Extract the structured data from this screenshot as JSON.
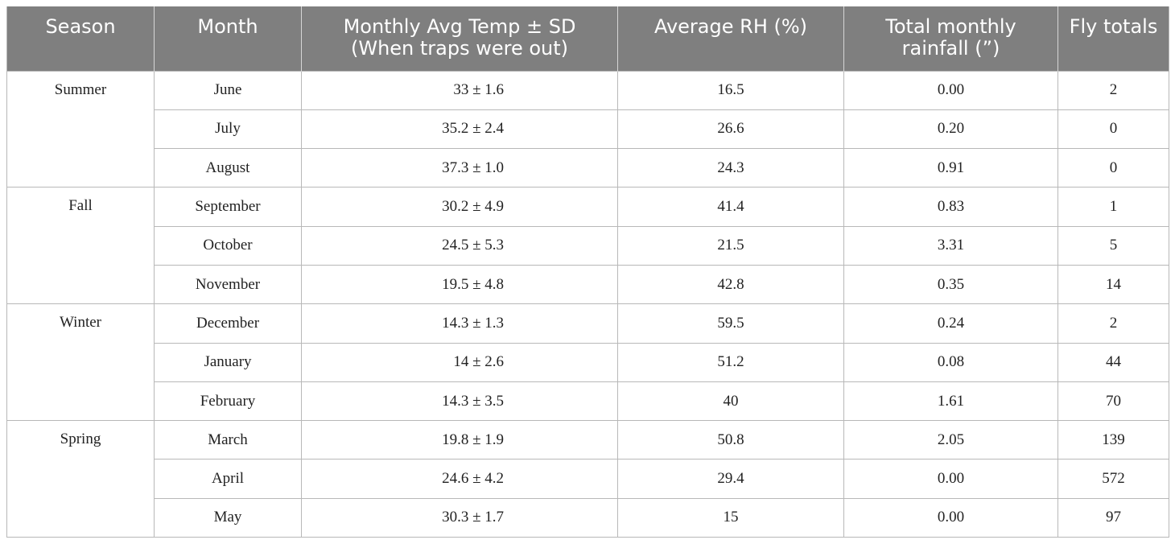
{
  "table": {
    "headers": [
      "Season",
      "Month",
      "Monthly Avg Temp ± SD (When traps were out)",
      "Average RH (%)",
      "Total monthly rainfall (”)",
      "Fly totals"
    ],
    "groups": [
      {
        "season": "Summer",
        "rows": [
          {
            "month": "June",
            "temp": "33 ± 1.6",
            "rh": "16.5",
            "rainfall": "0.00",
            "flies": "2"
          },
          {
            "month": "July",
            "temp": "35.2 ± 2.4",
            "rh": "26.6",
            "rainfall": "0.20",
            "flies": "0"
          },
          {
            "month": "August",
            "temp": "37.3 ± 1.0",
            "rh": "24.3",
            "rainfall": "0.91",
            "flies": "0"
          }
        ]
      },
      {
        "season": "Fall",
        "rows": [
          {
            "month": "September",
            "temp": "30.2 ± 4.9",
            "rh": "41.4",
            "rainfall": "0.83",
            "flies": "1"
          },
          {
            "month": "October",
            "temp": "24.5 ± 5.3",
            "rh": "21.5",
            "rainfall": "3.31",
            "flies": "5"
          },
          {
            "month": "November",
            "temp": "19.5 ± 4.8",
            "rh": "42.8",
            "rainfall": "0.35",
            "flies": "14"
          }
        ]
      },
      {
        "season": "Winter",
        "rows": [
          {
            "month": "December",
            "temp": "14.3 ± 1.3",
            "rh": "59.5",
            "rainfall": "0.24",
            "flies": "2"
          },
          {
            "month": "January",
            "temp": "14 ± 2.6",
            "rh": "51.2",
            "rainfall": "0.08",
            "flies": "44"
          },
          {
            "month": "February",
            "temp": "14.3 ± 3.5",
            "rh": "40",
            "rainfall": "1.61",
            "flies": "70"
          }
        ]
      },
      {
        "season": "Spring",
        "rows": [
          {
            "month": "March",
            "temp": "19.8 ± 1.9",
            "rh": "50.8",
            "rainfall": "2.05",
            "flies": "139"
          },
          {
            "month": "April",
            "temp": "24.6 ± 4.2",
            "rh": "29.4",
            "rainfall": "0.00",
            "flies": "572"
          },
          {
            "month": "May",
            "temp": "30.3 ± 1.7",
            "rh": "15",
            "rainfall": "0.00",
            "flies": "97"
          }
        ]
      }
    ]
  }
}
